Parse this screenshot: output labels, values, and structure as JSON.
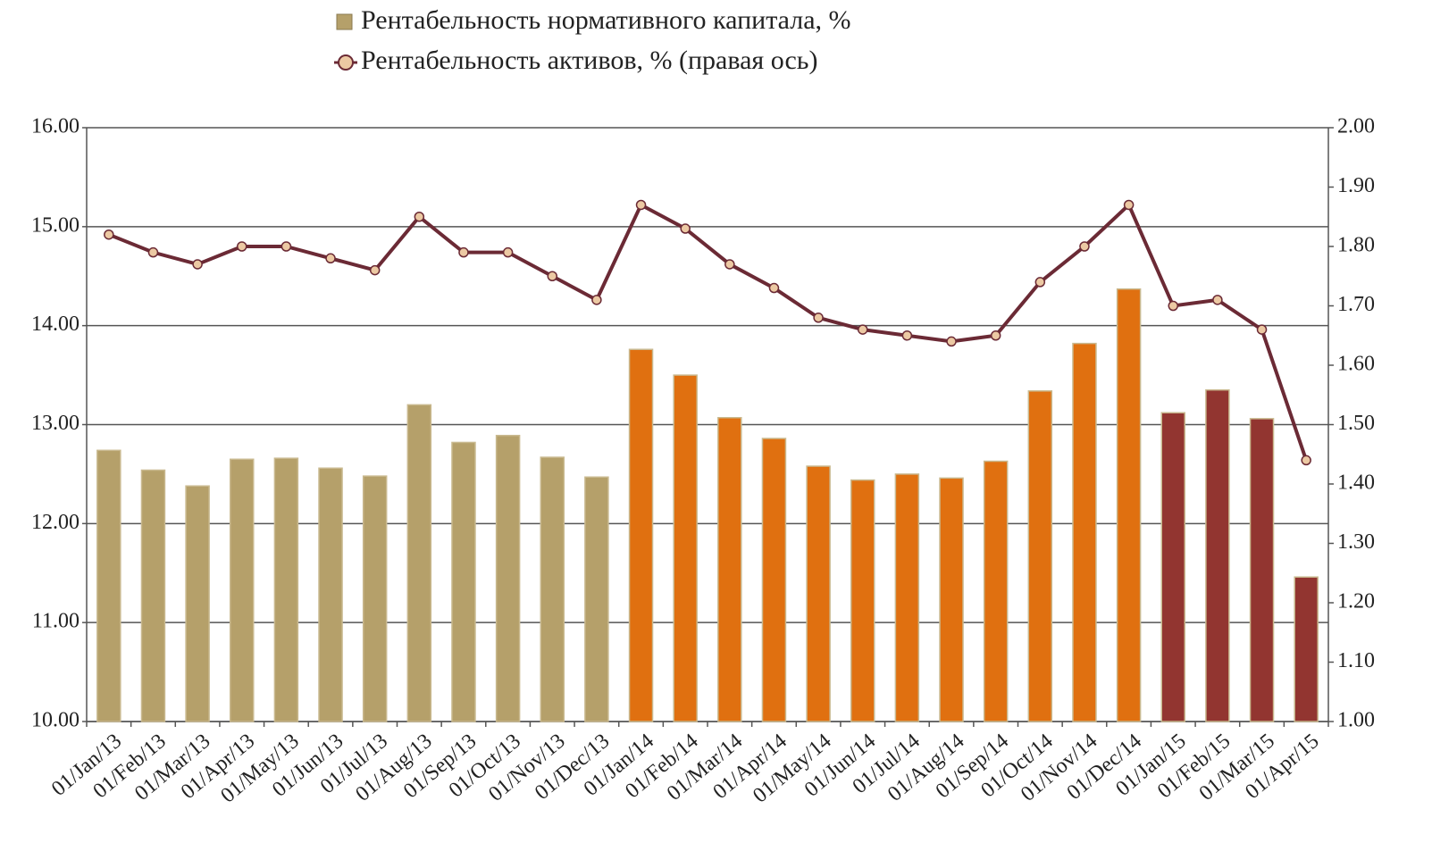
{
  "chart_data": {
    "type": "bar_line",
    "categories": [
      "01/Jan/13",
      "01/Feb/13",
      "01/Mar/13",
      "01/Apr/13",
      "01/May/13",
      "01/Jun/13",
      "01/Jul/13",
      "01/Aug/13",
      "01/Sep/13",
      "01/Oct/13",
      "01/Nov/13",
      "01/Dec/13",
      "01/Jan/14",
      "01/Feb/14",
      "01/Mar/14",
      "01/Apr/14",
      "01/May/14",
      "01/Jun/14",
      "01/Jul/14",
      "01/Aug/14",
      "01/Sep/14",
      "01/Oct/14",
      "01/Nov/14",
      "01/Dec/14",
      "01/Jan/15",
      "01/Feb/15",
      "01/Mar/15",
      "01/Apr/15"
    ],
    "series": [
      {
        "name": "Рентабельность нормативного капитала, %",
        "type": "bar",
        "color": "#b5a06a",
        "colors": [
          "#b5a06a",
          "#b5a06a",
          "#b5a06a",
          "#b5a06a",
          "#b5a06a",
          "#b5a06a",
          "#b5a06a",
          "#b5a06a",
          "#b5a06a",
          "#b5a06a",
          "#b5a06a",
          "#b5a06a",
          "#e07010",
          "#e07010",
          "#e07010",
          "#e07010",
          "#e07010",
          "#e07010",
          "#e07010",
          "#e07010",
          "#e07010",
          "#e07010",
          "#e07010",
          "#e07010",
          "#923530",
          "#923530",
          "#923530",
          "#923530"
        ],
        "values": [
          12.74,
          12.54,
          12.38,
          12.65,
          12.66,
          12.56,
          12.48,
          13.2,
          12.82,
          12.89,
          12.67,
          12.47,
          13.76,
          13.5,
          13.07,
          12.86,
          12.58,
          12.44,
          12.5,
          12.46,
          12.63,
          13.34,
          13.82,
          14.37,
          13.12,
          13.35,
          13.06,
          11.46
        ]
      },
      {
        "name": "Рентабельность активов, % (правая ось)",
        "type": "line",
        "axis": "y2",
        "color": "#6b2a35",
        "marker_color": "#ecc9a3",
        "values": [
          1.82,
          1.79,
          1.77,
          1.8,
          1.8,
          1.78,
          1.76,
          1.85,
          1.79,
          1.79,
          1.75,
          1.71,
          1.87,
          1.83,
          1.77,
          1.73,
          1.68,
          1.66,
          1.65,
          1.64,
          1.65,
          1.74,
          1.8,
          1.87,
          1.7,
          1.71,
          1.66,
          1.44
        ]
      }
    ],
    "ylim": [
      10,
      16
    ],
    "yticks": [
      {
        "value": 10,
        "label": "10.00"
      },
      {
        "value": 11,
        "label": "11.00"
      },
      {
        "value": 12,
        "label": "12.00"
      },
      {
        "value": 13,
        "label": "13.00"
      },
      {
        "value": 14,
        "label": "14.00"
      },
      {
        "value": 15,
        "label": "15.00"
      },
      {
        "value": 16,
        "label": "16.00"
      }
    ],
    "y2lim": [
      1,
      2
    ],
    "y2ticks": [
      {
        "value": 1,
        "label": "1.00"
      },
      {
        "value": 1.1,
        "label": "1.10"
      },
      {
        "value": 1.2,
        "label": "1.20"
      },
      {
        "value": 1.3,
        "label": "1.30"
      },
      {
        "value": 1.4,
        "label": "1.40"
      },
      {
        "value": 1.5,
        "label": "1.50"
      },
      {
        "value": 1.6,
        "label": "1.60"
      },
      {
        "value": 1.7,
        "label": "1.70"
      },
      {
        "value": 1.8,
        "label": "1.80"
      },
      {
        "value": 1.9,
        "label": "1.90"
      },
      {
        "value": 2,
        "label": "2.00"
      }
    ],
    "grid": true
  }
}
